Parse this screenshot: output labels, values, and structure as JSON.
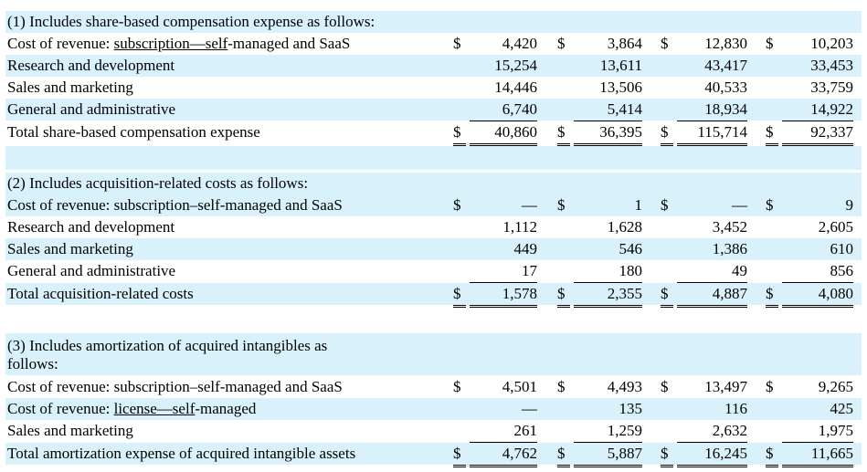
{
  "section1": {
    "heading": "(1) Includes share-based compensation expense as follows:",
    "rows": [
      {
        "label_prefix": "Cost of revenue: ",
        "label_u1": "subscription—self",
        "label_suffix": "-managed and SaaS",
        "d": [
          "$",
          "$",
          "$",
          "$"
        ],
        "v": [
          "4,420",
          "3,864",
          "12,830",
          "10,203"
        ]
      },
      {
        "label": "Research and development",
        "v": [
          "15,254",
          "13,611",
          "43,417",
          "33,453"
        ]
      },
      {
        "label": "Sales and marketing",
        "v": [
          "14,446",
          "13,506",
          "40,533",
          "33,759"
        ]
      },
      {
        "label": "General and administrative",
        "v": [
          "6,740",
          "5,414",
          "18,934",
          "14,922"
        ]
      },
      {
        "label": "Total share-based compensation expense",
        "d": [
          "$",
          "$",
          "$",
          "$"
        ],
        "v": [
          "40,860",
          "36,395",
          "115,714",
          "92,337"
        ]
      }
    ]
  },
  "section2": {
    "heading": "(2) Includes acquisition-related costs as follows:",
    "rows": [
      {
        "label": "Cost of revenue: subscription–self-managed and SaaS",
        "d": [
          "$",
          "$",
          "$",
          "$"
        ],
        "v": [
          "—",
          "1",
          "—",
          "9"
        ]
      },
      {
        "label": "Research and development",
        "v": [
          "1,112",
          "1,628",
          "3,452",
          "2,605"
        ]
      },
      {
        "label": "Sales and marketing",
        "v": [
          "449",
          "546",
          "1,386",
          "610"
        ]
      },
      {
        "label": "General and administrative",
        "v": [
          "17",
          "180",
          "49",
          "856"
        ]
      },
      {
        "label": "Total acquisition-related costs",
        "d": [
          "$",
          "$",
          "$",
          "$"
        ],
        "v": [
          "1,578",
          "2,355",
          "4,887",
          "4,080"
        ]
      }
    ]
  },
  "section3": {
    "heading_line1": "(3) Includes amortization of acquired intangibles as",
    "heading_line2": "follows:",
    "rows": [
      {
        "label": "Cost of revenue: subscription–self-managed and SaaS",
        "d": [
          "$",
          "$",
          "$",
          "$"
        ],
        "v": [
          "4,501",
          "4,493",
          "13,497",
          "9,265"
        ]
      },
      {
        "label_prefix": "Cost of revenue: ",
        "label_u1": "license—self",
        "label_suffix": "-managed",
        "v": [
          "—",
          "135",
          "116",
          "425"
        ]
      },
      {
        "label": "Sales and marketing",
        "v": [
          "261",
          "1,259",
          "2,632",
          "1,975"
        ]
      },
      {
        "label": "Total amortization expense of acquired intangible assets",
        "d": [
          "$",
          "$",
          "$",
          "$"
        ],
        "v": [
          "4,762",
          "5,887",
          "16,245",
          "11,665"
        ]
      }
    ]
  }
}
